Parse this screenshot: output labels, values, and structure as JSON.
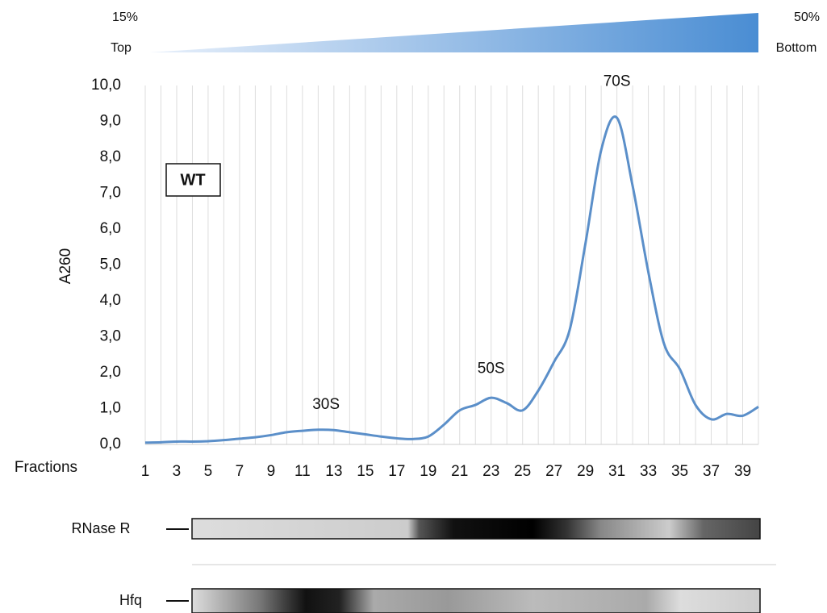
{
  "chart_data": {
    "type": "line",
    "gradient": {
      "top_percent": "15%",
      "top_label": "Top",
      "bottom_percent": "50%",
      "bottom_label": "Bottom"
    },
    "xlabel": "Fractions",
    "ylabel": "A260",
    "x": [
      1,
      2,
      3,
      4,
      5,
      6,
      7,
      8,
      9,
      10,
      11,
      12,
      13,
      14,
      15,
      16,
      17,
      18,
      19,
      20,
      21,
      22,
      23,
      24,
      25,
      26,
      27,
      28,
      29,
      30,
      31,
      32,
      33,
      34,
      35,
      36,
      37,
      38,
      39,
      40
    ],
    "series": [
      {
        "name": "WT",
        "color": "#5b8fc9",
        "values": [
          0.05,
          0.06,
          0.08,
          0.08,
          0.09,
          0.12,
          0.16,
          0.2,
          0.26,
          0.34,
          0.38,
          0.41,
          0.4,
          0.34,
          0.28,
          0.22,
          0.17,
          0.15,
          0.22,
          0.55,
          0.95,
          1.1,
          1.3,
          1.15,
          0.95,
          1.5,
          2.3,
          3.2,
          5.6,
          8.2,
          9.1,
          7.2,
          4.8,
          2.8,
          2.1,
          1.1,
          0.7,
          0.85,
          0.8,
          1.05
        ]
      }
    ],
    "xlim": [
      1,
      40
    ],
    "xticks": [
      1,
      3,
      5,
      7,
      9,
      11,
      13,
      15,
      17,
      19,
      21,
      23,
      25,
      27,
      29,
      31,
      33,
      35,
      37,
      39
    ],
    "ylim": [
      0,
      10
    ],
    "yticks": [
      {
        "value": 0,
        "label": "0,0"
      },
      {
        "value": 1,
        "label": "1,0"
      },
      {
        "value": 2,
        "label": "2,0"
      },
      {
        "value": 3,
        "label": "3,0"
      },
      {
        "value": 4,
        "label": "4,0"
      },
      {
        "value": 5,
        "label": "5,0"
      },
      {
        "value": 6,
        "label": "6,0"
      },
      {
        "value": 7,
        "label": "7,0"
      },
      {
        "value": 8,
        "label": "8,0"
      },
      {
        "value": 9,
        "label": "9,0"
      },
      {
        "value": 10,
        "label": "10,0"
      }
    ],
    "annotations": [
      {
        "text": "30S",
        "x": 12.5,
        "y": 1.1
      },
      {
        "text": "50S",
        "x": 23,
        "y": 2.1
      },
      {
        "text": "70S",
        "x": 31,
        "y": 10.1
      }
    ],
    "blots": [
      "RNase R",
      "Hfq"
    ]
  }
}
